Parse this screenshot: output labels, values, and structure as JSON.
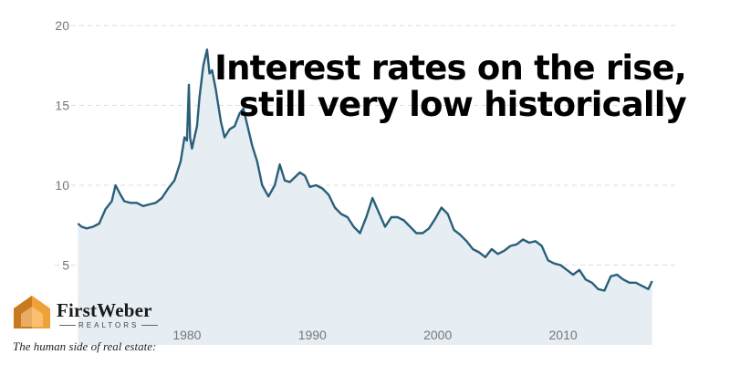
{
  "chart_data": {
    "type": "area",
    "title": "Interest rates on the rise, still very low historically",
    "title_lines": [
      "Interest rates on the rise,",
      "still very low historically"
    ],
    "xlabel": "",
    "ylabel": "",
    "xlim": [
      1971.2,
      2017.2
    ],
    "ylim": [
      0,
      20
    ],
    "x_ticks": [
      1980,
      1990,
      2000,
      2010
    ],
    "y_ticks": [
      5,
      10,
      15,
      20
    ],
    "grid": true,
    "line_color": "#2a5f7a",
    "fill_color": "#e6edf3",
    "x": [
      1971.3,
      1971.6,
      1972.0,
      1972.5,
      1973.0,
      1973.5,
      1974.0,
      1974.3,
      1974.7,
      1975.0,
      1975.5,
      1976.0,
      1976.5,
      1977.0,
      1977.5,
      1978.0,
      1978.5,
      1979.0,
      1979.5,
      1979.8,
      1980.0,
      1980.15,
      1980.25,
      1980.4,
      1980.6,
      1980.8,
      1981.0,
      1981.3,
      1981.6,
      1981.8,
      1982.0,
      1982.3,
      1982.7,
      1983.0,
      1983.4,
      1983.8,
      1984.2,
      1984.5,
      1984.8,
      1985.2,
      1985.6,
      1986.0,
      1986.5,
      1987.0,
      1987.4,
      1987.8,
      1988.2,
      1988.6,
      1989.0,
      1989.4,
      1989.8,
      1990.3,
      1990.8,
      1991.3,
      1991.8,
      1992.3,
      1992.8,
      1993.3,
      1993.8,
      1994.3,
      1994.8,
      1995.3,
      1995.8,
      1996.3,
      1996.8,
      1997.3,
      1997.8,
      1998.3,
      1998.8,
      1999.3,
      1999.8,
      2000.3,
      2000.8,
      2001.3,
      2001.8,
      2002.3,
      2002.8,
      2003.3,
      2003.8,
      2004.3,
      2004.8,
      2005.3,
      2005.8,
      2006.3,
      2006.8,
      2007.3,
      2007.8,
      2008.3,
      2008.8,
      2009.3,
      2009.8,
      2010.3,
      2010.8,
      2011.3,
      2011.8,
      2012.3,
      2012.8,
      2013.3,
      2013.8,
      2014.3,
      2014.8,
      2015.3,
      2015.8,
      2016.3,
      2016.8,
      2017.1
    ],
    "values": [
      7.6,
      7.4,
      7.3,
      7.4,
      7.6,
      8.5,
      9.0,
      10.0,
      9.4,
      9.0,
      8.9,
      8.9,
      8.7,
      8.8,
      8.9,
      9.2,
      9.8,
      10.3,
      11.5,
      13.0,
      12.8,
      16.3,
      13.0,
      12.3,
      13.0,
      13.7,
      15.5,
      17.5,
      18.5,
      17.0,
      17.2,
      16.0,
      14.0,
      13.0,
      13.5,
      13.7,
      14.5,
      14.8,
      13.8,
      12.5,
      11.5,
      10.0,
      9.3,
      10.0,
      11.3,
      10.3,
      10.2,
      10.5,
      10.8,
      10.6,
      9.9,
      10.0,
      9.8,
      9.4,
      8.6,
      8.2,
      8.0,
      7.4,
      7.0,
      8.0,
      9.2,
      8.3,
      7.4,
      8.0,
      8.0,
      7.8,
      7.4,
      7.0,
      7.0,
      7.3,
      7.9,
      8.6,
      8.2,
      7.2,
      6.9,
      6.5,
      6.0,
      5.8,
      5.5,
      6.0,
      5.7,
      5.9,
      6.2,
      6.3,
      6.6,
      6.4,
      6.5,
      6.2,
      5.3,
      5.1,
      5.0,
      4.7,
      4.4,
      4.7,
      4.1,
      3.9,
      3.5,
      3.4,
      4.3,
      4.4,
      4.1,
      3.9,
      3.9,
      3.7,
      3.5,
      4.0
    ]
  },
  "brand": {
    "name": "FirstWeber",
    "sub": "REALTORS",
    "tagline": "The human side of real estate:"
  },
  "colors": {
    "logo_orange": "#f0a23a",
    "logo_dark": "#c97a1e"
  }
}
